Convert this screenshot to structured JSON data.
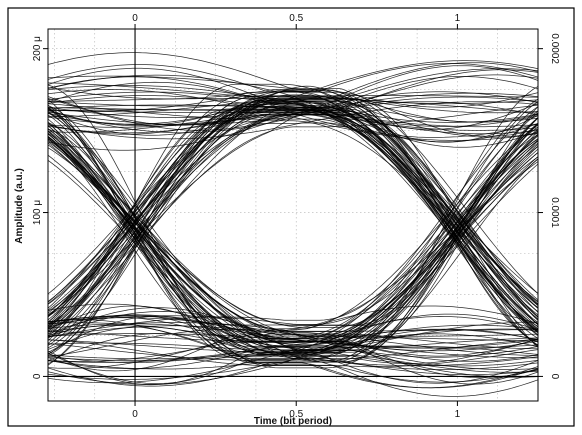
{
  "chart_data": {
    "type": "line",
    "title": "",
    "xlabel": "Time (bit period)",
    "ylabel": "Amplitude (a.u.)",
    "xlim": [
      -0.27,
      1.25
    ],
    "ylim": [
      -1.5e-05,
      0.000212
    ],
    "x_ticks": [
      0,
      0.5,
      1
    ],
    "x_tick_labels": [
      "0",
      "0.5",
      "1"
    ],
    "y_ticks": [
      0,
      0.0001,
      0.0002
    ],
    "y_tick_labels_left": [
      "0",
      "100 μ",
      "200 μ"
    ],
    "y_tick_labels_right": [
      "0",
      "0.0001",
      "0.0002"
    ],
    "grid": true,
    "grid_style": "dotted",
    "line_color": "#000000",
    "eye_rails": {
      "high": 0.000165,
      "low": 1.8e-05
    },
    "trace_count": 160
  }
}
